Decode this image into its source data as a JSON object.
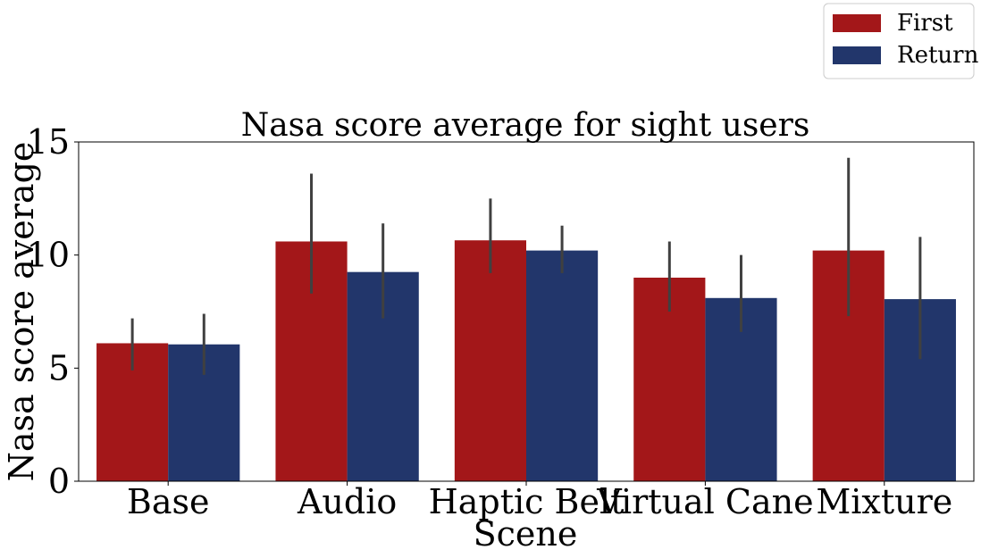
{
  "chart_data": {
    "type": "bar",
    "title": "Nasa score average for sight users",
    "xlabel": "Scene",
    "ylabel": "Nasa score average",
    "categories": [
      "Base",
      "Audio",
      "Haptic Belt",
      "Virtual Cane",
      "Mixture"
    ],
    "ylim": [
      0,
      15
    ],
    "yticks": [
      "0",
      "5",
      "10",
      "15"
    ],
    "grid": false,
    "legend_position": "upper right, outside above plot",
    "series": [
      {
        "name": "First",
        "color": "#a31719",
        "values": [
          6.1,
          10.6,
          10.65,
          9.0,
          10.2
        ],
        "error_low": [
          4.9,
          8.3,
          9.2,
          7.5,
          7.3
        ],
        "error_high": [
          7.2,
          13.6,
          12.5,
          10.6,
          14.3
        ]
      },
      {
        "name": "Return",
        "color": "#22366b",
        "values": [
          6.05,
          9.25,
          10.2,
          8.1,
          8.05
        ],
        "error_low": [
          4.7,
          7.2,
          9.2,
          6.6,
          5.4
        ],
        "error_high": [
          7.4,
          11.4,
          11.3,
          10.0,
          10.8
        ]
      }
    ],
    "error_bar_color": "#404040"
  }
}
